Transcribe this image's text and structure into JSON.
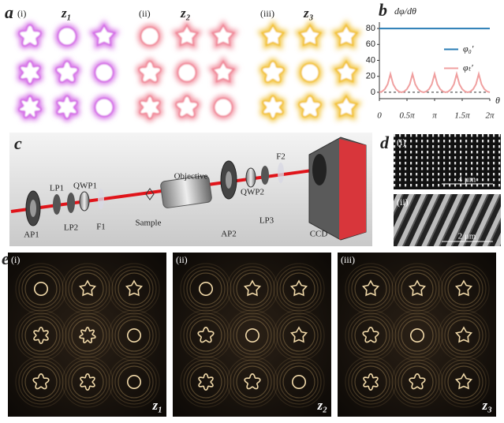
{
  "panel_a": {
    "label": "a",
    "subpanels": [
      {
        "label": "(i)",
        "z": "z₁"
      },
      {
        "label": "(ii)",
        "z": "z₂"
      },
      {
        "label": "(iii)",
        "z": "z₃"
      }
    ]
  },
  "chart_data": {
    "type": "line",
    "panel_label": "b",
    "y_label": "dφ/dθ",
    "x_label": "θ",
    "xlim": [
      0,
      2
    ],
    "ylim": [
      -8,
      88
    ],
    "xticks": [
      0,
      {
        "value": 0.5,
        "label": "0.5π"
      },
      {
        "value": 1,
        "label": "π"
      },
      {
        "value": 1.5,
        "label": "1.5π"
      },
      {
        "value": 2,
        "label": "2π"
      }
    ],
    "yticks": [
      0,
      20,
      40,
      60,
      80
    ],
    "legend": "center right",
    "series": [
      {
        "name": "φ₀′",
        "color": "#2a7db5",
        "x": [
          0,
          2
        ],
        "values": [
          80,
          80
        ]
      },
      {
        "name": "φₜ′",
        "color": "#f0a0a0",
        "x": [
          0,
          0.05,
          0.1,
          0.15,
          0.2,
          0.25,
          0.3,
          0.35,
          0.4,
          0.45,
          0.5,
          0.55,
          0.6,
          0.65,
          0.7,
          0.75,
          0.8,
          0.85,
          0.9,
          0.95,
          1,
          1.05,
          1.1,
          1.15,
          1.2,
          1.25,
          1.3,
          1.35,
          1.4,
          1.45,
          1.5,
          1.55,
          1.6,
          1.65,
          1.7,
          1.75,
          1.8,
          1.85,
          1.9,
          1.95,
          2
        ],
        "values": [
          0,
          1,
          4,
          10,
          23,
          10,
          4,
          1,
          0,
          1,
          4,
          10,
          23,
          10,
          4,
          1,
          0,
          1,
          4,
          10,
          23,
          10,
          4,
          1,
          0,
          1,
          4,
          10,
          23,
          10,
          4,
          1,
          0,
          1,
          4,
          10,
          23,
          10,
          4,
          1,
          0
        ]
      }
    ]
  },
  "panel_c": {
    "label": "c",
    "components": [
      "AP1",
      "LP1",
      "LP2",
      "QWP1",
      "F1",
      "Sample",
      "Objective",
      "AP2",
      "QWP2",
      "LP3",
      "F2",
      "CCD"
    ]
  },
  "panel_d": {
    "label": "d",
    "subpanels": [
      {
        "label": "(i)",
        "scale_bar": "4 μm"
      },
      {
        "label": "(ii)",
        "scale_bar": "2 μm"
      }
    ]
  },
  "panel_e": {
    "label": "e",
    "subpanels": [
      {
        "label": "(i)",
        "z": "z₁"
      },
      {
        "label": "(ii)",
        "z": "z₂"
      },
      {
        "label": "(iii)",
        "z": "z₃"
      }
    ]
  }
}
